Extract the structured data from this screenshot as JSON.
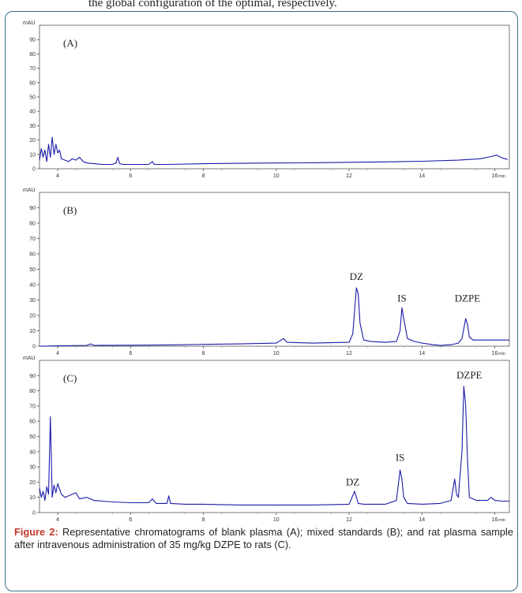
{
  "page_top_text": "the global configuration of the optimal, respectively.",
  "caption": {
    "label": "Figure 2:",
    "text": "Representative chromatograms of blank plasma (A); mixed standards (B); and rat plasma sample after intravenous administration of 35 mg/kg DZPE to rats (C)."
  },
  "colors": {
    "trace": "#1a1aa8",
    "frame": "#3a6c8c",
    "caption_label": "#c0392b"
  },
  "chart_data": [
    {
      "type": "line",
      "panel_label": "(A)",
      "ylabel": "mAU",
      "xunit": "min",
      "xlim": [
        3.5,
        16.4
      ],
      "ylim": [
        0,
        100
      ],
      "x_ticks": [
        4,
        6,
        8,
        10,
        12,
        14,
        16
      ],
      "y_ticks": [
        0,
        10,
        20,
        30,
        40,
        50,
        60,
        70,
        80,
        90
      ],
      "grid": false,
      "series": [
        {
          "x": [
            3.5,
            3.55,
            3.6,
            3.65,
            3.7,
            3.75,
            3.8,
            3.85,
            3.9,
            3.95,
            4.0,
            4.05,
            4.1,
            4.2,
            4.3,
            4.4,
            4.5,
            4.6,
            4.7,
            4.8,
            5.0,
            5.2,
            5.5,
            5.6,
            5.65,
            5.7,
            5.8,
            6.0,
            6.5,
            6.6,
            6.65,
            6.7,
            7.0,
            8.0,
            9.0,
            10.0,
            11.0,
            12.0,
            13.0,
            14.0,
            15.0,
            15.6,
            15.9,
            16.05,
            16.2,
            16.35
          ],
          "y": [
            6,
            14,
            8,
            13,
            5,
            17,
            8,
            22,
            10,
            17,
            11,
            13,
            7,
            6,
            5,
            7,
            6,
            8,
            5,
            4,
            3.5,
            3,
            3,
            4,
            8,
            3.5,
            3,
            3,
            3,
            5,
            3,
            3,
            3,
            3.5,
            3.8,
            4,
            4.2,
            4.5,
            4.8,
            5.2,
            6,
            7,
            8.5,
            9.5,
            7.5,
            6.5
          ]
        }
      ]
    },
    {
      "type": "line",
      "panel_label": "(B)",
      "ylabel": "mAU",
      "xunit": "min",
      "xlim": [
        3.5,
        16.4
      ],
      "ylim": [
        0,
        100
      ],
      "x_ticks": [
        4,
        6,
        8,
        10,
        12,
        14,
        16
      ],
      "y_ticks": [
        0,
        10,
        20,
        30,
        40,
        50,
        60,
        70,
        80,
        90
      ],
      "grid": false,
      "annotations": [
        {
          "text": "DZ",
          "x": 12.2,
          "y": 43
        },
        {
          "text": "IS",
          "x": 13.45,
          "y": 29
        },
        {
          "text": "DZPE",
          "x": 15.25,
          "y": 29
        }
      ],
      "series": [
        {
          "x": [
            3.5,
            4.0,
            4.8,
            4.9,
            5.0,
            6.0,
            7.0,
            8.0,
            9.0,
            10.0,
            10.1,
            10.2,
            10.3,
            11.0,
            12.0,
            12.1,
            12.2,
            12.25,
            12.3,
            12.4,
            12.6,
            13.0,
            13.3,
            13.4,
            13.45,
            13.5,
            13.6,
            13.8,
            14.0,
            14.3,
            14.5,
            14.8,
            15.0,
            15.1,
            15.2,
            15.25,
            15.3,
            15.4,
            15.6,
            16.0,
            16.4
          ],
          "y": [
            0,
            0.2,
            0.5,
            1.5,
            0.5,
            0.6,
            0.8,
            1.2,
            1.5,
            2,
            3.5,
            5,
            2.5,
            2,
            2.5,
            8,
            38,
            34,
            15,
            4,
            3,
            2.5,
            3,
            10,
            25,
            18,
            5,
            3,
            2,
            1,
            0.5,
            1,
            2,
            5,
            18,
            14,
            6,
            4,
            4,
            4,
            4
          ]
        }
      ]
    },
    {
      "type": "line",
      "panel_label": "(C)",
      "ylabel": "mAU",
      "xunit": "min",
      "xlim": [
        3.5,
        16.4
      ],
      "ylim": [
        0,
        100
      ],
      "x_ticks": [
        4,
        6,
        8,
        10,
        12,
        14,
        16
      ],
      "y_ticks": [
        0,
        10,
        20,
        30,
        40,
        50,
        60,
        70,
        80,
        90
      ],
      "grid": false,
      "annotations": [
        {
          "text": "DZ",
          "x": 12.1,
          "y": 18
        },
        {
          "text": "IS",
          "x": 13.4,
          "y": 34
        },
        {
          "text": "DZPE",
          "x": 15.3,
          "y": 88
        }
      ],
      "series": [
        {
          "x": [
            3.5,
            3.55,
            3.6,
            3.65,
            3.7,
            3.75,
            3.8,
            3.85,
            3.9,
            3.95,
            4.0,
            4.1,
            4.2,
            4.3,
            4.4,
            4.5,
            4.6,
            4.8,
            5.0,
            5.5,
            6.0,
            6.5,
            6.6,
            6.7,
            7.0,
            7.05,
            7.1,
            7.5,
            8.0,
            9.0,
            10.0,
            11.0,
            12.0,
            12.15,
            12.2,
            12.25,
            12.4,
            13.0,
            13.3,
            13.4,
            13.45,
            13.5,
            13.6,
            14.0,
            14.5,
            14.8,
            14.9,
            14.95,
            15.0,
            15.1,
            15.15,
            15.2,
            15.25,
            15.3,
            15.5,
            15.8,
            15.9,
            16.0,
            16.2,
            16.4
          ],
          "y": [
            16,
            10,
            14,
            8,
            17,
            12,
            63,
            10,
            18,
            13,
            19,
            12,
            10,
            11,
            12,
            13,
            9,
            10,
            8,
            7,
            6.5,
            6.5,
            9,
            6,
            6,
            11,
            6,
            5.5,
            5.5,
            5,
            5,
            5,
            5.5,
            14,
            10,
            6,
            5.5,
            5.5,
            8,
            28,
            22,
            10,
            6,
            5.5,
            6,
            8,
            22,
            12,
            10,
            40,
            83,
            70,
            35,
            10,
            8,
            8,
            10,
            8,
            7.5,
            7.5
          ]
        }
      ]
    }
  ]
}
